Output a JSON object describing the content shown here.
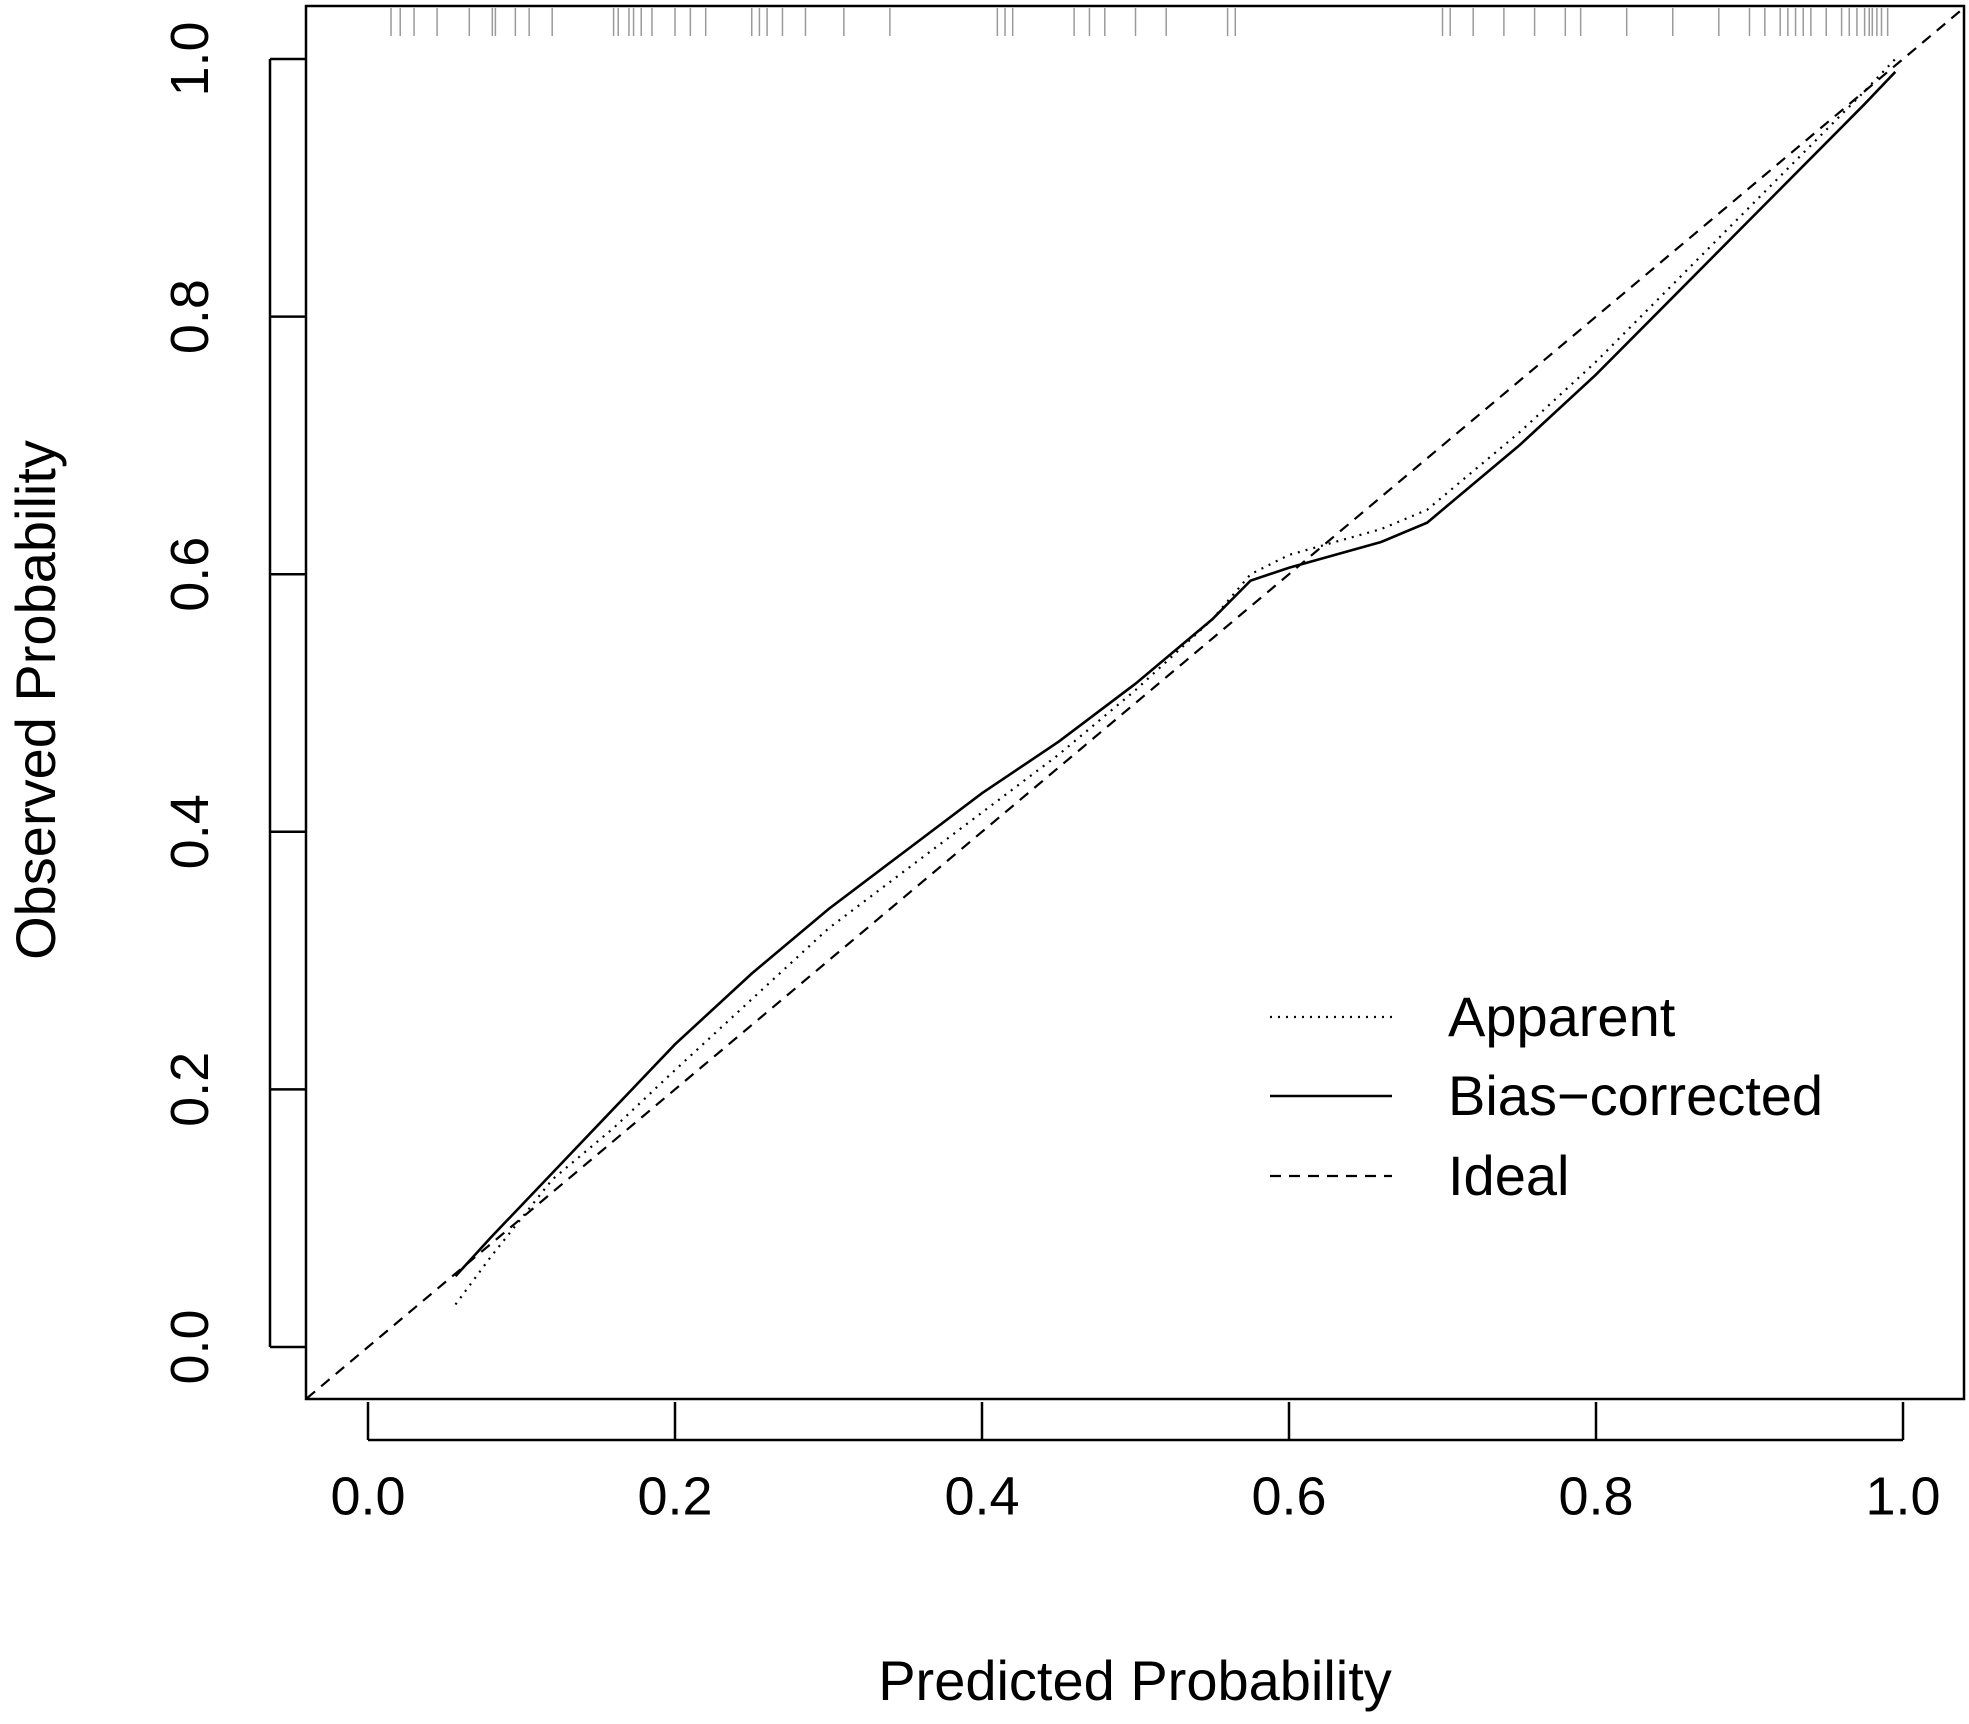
{
  "chart_data": {
    "type": "line",
    "title": "",
    "xlabel": "Predicted Probability",
    "ylabel": "Observed Probability",
    "xlim": [
      -0.04,
      1.04
    ],
    "ylim": [
      -0.04,
      1.04
    ],
    "x_ticks": [
      "0.0",
      "0.2",
      "0.4",
      "0.6",
      "0.8",
      "1.0"
    ],
    "y_ticks": [
      "0.0",
      "0.2",
      "0.4",
      "0.6",
      "0.8",
      "1.0"
    ],
    "grid": false,
    "legend_position": "bottom-right",
    "legend": [
      {
        "label": "Apparent",
        "style": "dotted"
      },
      {
        "label": "Bias−corrected",
        "style": "solid"
      },
      {
        "label": "Ideal",
        "style": "dashed"
      }
    ],
    "series": [
      {
        "name": "Apparent",
        "style": "dotted",
        "x": [
          0.057,
          0.08,
          0.12,
          0.16,
          0.2,
          0.25,
          0.3,
          0.35,
          0.4,
          0.45,
          0.5,
          0.55,
          0.575,
          0.6,
          0.63,
          0.66,
          0.69,
          0.75,
          0.8,
          0.85,
          0.9,
          0.95,
          0.975,
          0.995
        ],
        "y": [
          0.033,
          0.07,
          0.13,
          0.17,
          0.215,
          0.27,
          0.325,
          0.37,
          0.415,
          0.46,
          0.51,
          0.565,
          0.6,
          0.615,
          0.625,
          0.635,
          0.65,
          0.71,
          0.765,
          0.825,
          0.885,
          0.945,
          0.975,
          1.0
        ]
      },
      {
        "name": "Bias−corrected",
        "style": "solid",
        "x": [
          0.057,
          0.08,
          0.12,
          0.16,
          0.2,
          0.25,
          0.3,
          0.35,
          0.4,
          0.45,
          0.5,
          0.55,
          0.575,
          0.6,
          0.63,
          0.66,
          0.69,
          0.75,
          0.8,
          0.85,
          0.9,
          0.95,
          0.975,
          0.995
        ],
        "y": [
          0.055,
          0.085,
          0.135,
          0.185,
          0.235,
          0.29,
          0.34,
          0.385,
          0.43,
          0.47,
          0.515,
          0.565,
          0.595,
          0.605,
          0.615,
          0.625,
          0.64,
          0.7,
          0.755,
          0.815,
          0.875,
          0.935,
          0.965,
          0.99
        ]
      },
      {
        "name": "Ideal",
        "style": "dashed",
        "x": [
          -0.04,
          1.04
        ],
        "y": [
          -0.04,
          1.04
        ]
      }
    ],
    "rug": [
      0.015,
      0.021,
      0.03,
      0.045,
      0.066,
      0.081,
      0.083,
      0.096,
      0.105,
      0.12,
      0.16,
      0.163,
      0.17,
      0.173,
      0.178,
      0.185,
      0.2,
      0.21,
      0.22,
      0.25,
      0.255,
      0.26,
      0.27,
      0.285,
      0.31,
      0.34,
      0.41,
      0.415,
      0.42,
      0.46,
      0.47,
      0.48,
      0.5,
      0.52,
      0.56,
      0.565,
      0.7,
      0.705,
      0.72,
      0.74,
      0.76,
      0.78,
      0.79,
      0.82,
      0.85,
      0.88,
      0.9,
      0.91,
      0.92,
      0.925,
      0.93,
      0.935,
      0.94,
      0.95,
      0.96,
      0.965,
      0.97,
      0.975,
      0.978,
      0.98,
      0.983,
      0.986,
      0.99
    ]
  }
}
